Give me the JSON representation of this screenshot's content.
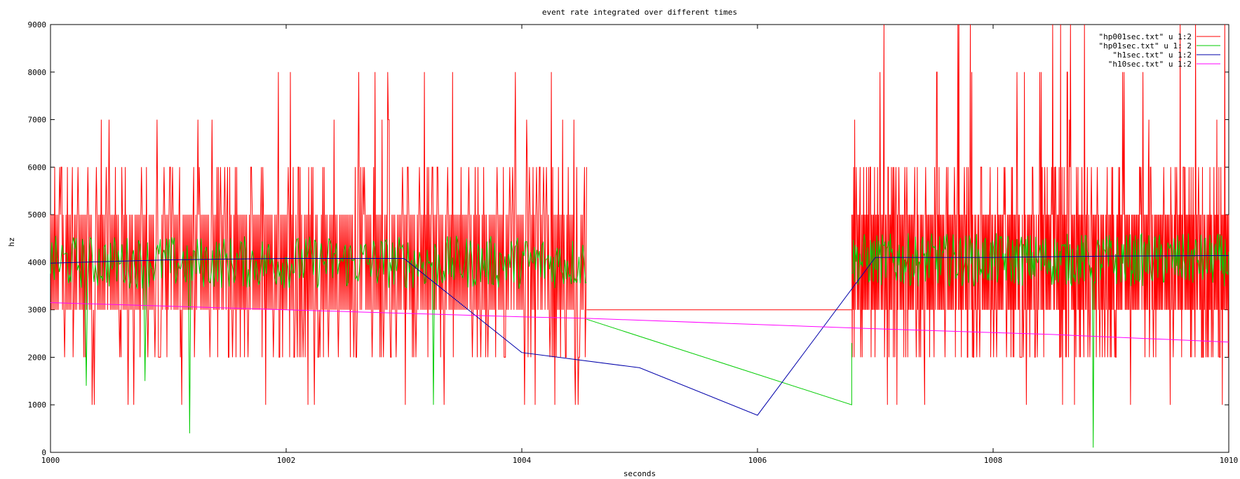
{
  "chart_data": {
    "type": "line",
    "title": "event rate integrated over different times",
    "xlabel": "seconds",
    "ylabel": "hz",
    "xlim": [
      1000,
      1010
    ],
    "ylim": [
      0,
      9000
    ],
    "xticks": [
      1000,
      1002,
      1004,
      1006,
      1008,
      1010
    ],
    "yticks": [
      0,
      1000,
      2000,
      3000,
      4000,
      5000,
      6000,
      7000,
      8000,
      9000
    ],
    "grid": false,
    "legend_position": "top-right",
    "series": [
      {
        "name": "\"hp001sec.txt\" u 1:2",
        "color": "#ff0000",
        "style": "dense oscillation between 2000 and 6000 hz with spikes to 1000 and 7000-8000 hz",
        "segments": [
          {
            "x_start": 1000,
            "x_end": 1004.55,
            "band": [
              3000,
              5000
            ],
            "envelope": [
              2000,
              6000
            ],
            "spikes": [
              1000,
              7000,
              8000
            ]
          },
          {
            "x_start": 1006.8,
            "x_end": 1010,
            "band": [
              3000,
              5000
            ],
            "envelope": [
              2000,
              6000
            ],
            "spikes": [
              1000,
              7000,
              8000,
              9000
            ]
          }
        ],
        "gap_line": {
          "x": [
            1004.55,
            1006.8
          ],
          "y": [
            3000,
            3000
          ]
        }
      },
      {
        "name": "\"hp01sec.txt\" u 1: 2",
        "color": "#00cc00",
        "style": "noisy trace around 4000 hz",
        "segments": [
          {
            "x_start": 1000,
            "x_end": 1004.55,
            "mean": 4000,
            "range": [
              3400,
              4800
            ]
          },
          {
            "x_start": 1006.8,
            "x_end": 1010,
            "mean": 4050,
            "range": [
              3400,
              4800
            ]
          }
        ],
        "gap_line": {
          "x": [
            1004.55,
            1006.8,
            1006.8
          ],
          "y": [
            2800,
            1000,
            2300
          ]
        },
        "dips": [
          {
            "x": 1000.3,
            "y": 1400
          },
          {
            "x": 1000.8,
            "y": 1500
          },
          {
            "x": 1001.18,
            "y": 400
          },
          {
            "x": 1003.25,
            "y": 1000
          },
          {
            "x": 1008.85,
            "y": 100
          }
        ]
      },
      {
        "name": "\"h1sec.txt\" u 1:2",
        "color": "#0000aa",
        "x": [
          1000,
          1001,
          1002,
          1003,
          1004,
          1005,
          1006,
          1007,
          1008,
          1009,
          1010
        ],
        "y": [
          3980,
          4050,
          4080,
          4080,
          2100,
          1780,
          780,
          4100,
          4100,
          4130,
          4140
        ]
      },
      {
        "name": "\"h10sec.txt\" u 1:2",
        "color": "#ff00ff",
        "x": [
          1000,
          1002,
          1004,
          1004.55,
          1007,
          1008.5,
          1010
        ],
        "y": [
          3150,
          3000,
          2850,
          2820,
          2600,
          2480,
          2320
        ]
      }
    ]
  }
}
